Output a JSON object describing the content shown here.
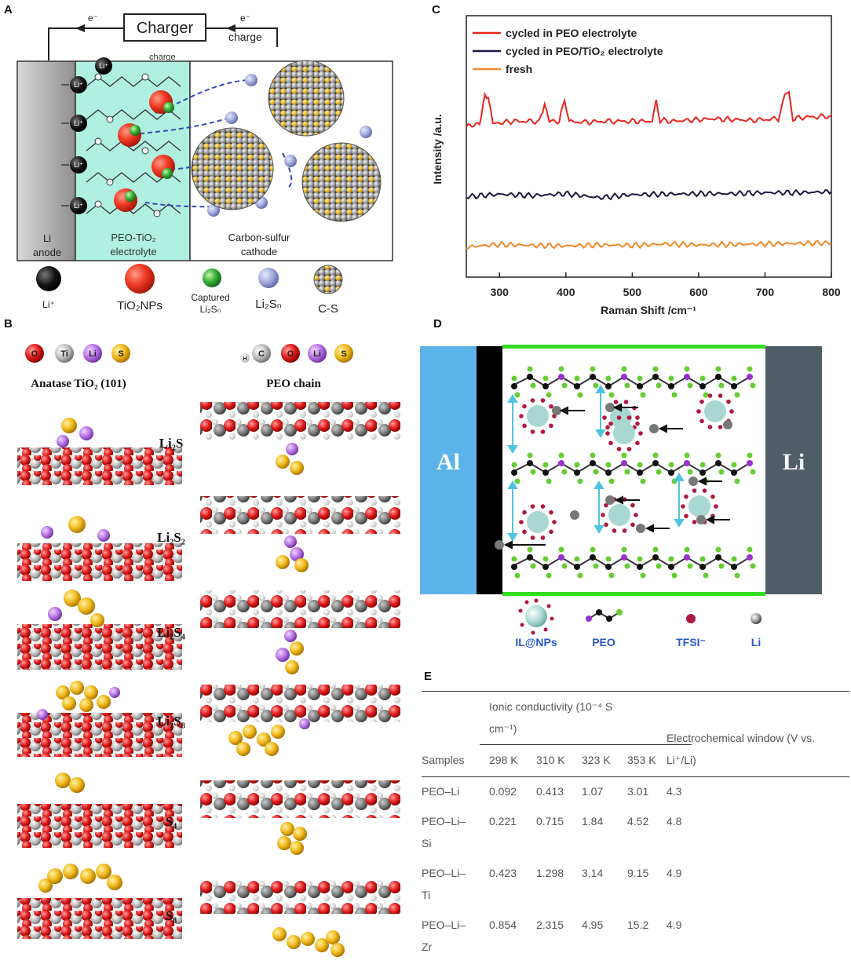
{
  "panels": {
    "a": "A",
    "b": "B",
    "c": "C",
    "d": "D",
    "e": "E"
  },
  "panel_a": {
    "charger": "Charger",
    "e_left": "e⁻",
    "e_right": "e⁻",
    "charge_top": "charge",
    "charge_small": "charge",
    "li_ion": "Li⁺",
    "anode": "Li anode",
    "anode_line1": "Li",
    "anode_line2": "anode",
    "electrolyte_line1": "PEO-TiO₂",
    "electrolyte_line2": "electrolyte",
    "cathode_line1": "Carbon-sulfur",
    "cathode_line2": "cathode",
    "legend": {
      "li": "Li⁺",
      "tio2": "TiO₂NPs",
      "captured_line1": "Captured",
      "captured_line2": "Li₂Sₙ",
      "li2sn": "Li₂Sₙ",
      "cs": "C-S"
    }
  },
  "panel_b": {
    "left_legend": [
      "O",
      "Ti",
      "Li",
      "S"
    ],
    "right_legend": [
      "H",
      "C",
      "O",
      "Li",
      "S"
    ],
    "left_title": "Anatase TiO₂ (101)",
    "right_title": "PEO chain",
    "species": [
      "Li₂S",
      "Li₂S₂",
      "Li₂S₄",
      "Li₂S₈",
      "S₄",
      "S₈"
    ]
  },
  "chart_data": {
    "type": "line",
    "xlabel": "Raman Shift /cm⁻¹",
    "ylabel": "Intensity /a.u.",
    "xlim": [
      250,
      800
    ],
    "xticks": [
      300,
      400,
      500,
      600,
      700,
      800
    ],
    "xtick_labels": [
      "300",
      "400",
      "500",
      "600",
      "700",
      "800"
    ],
    "legend_position": "top-left",
    "series": [
      {
        "name": "cycled in PEO electrolyte",
        "color": "#e8251f",
        "x": [
          250,
          270,
          278,
          283,
          290,
          320,
          360,
          368,
          375,
          390,
          398,
          405,
          420,
          460,
          500,
          530,
          536,
          542,
          560,
          620,
          680,
          720,
          730,
          736,
          742,
          760,
          800
        ],
        "y": [
          3.0,
          3.05,
          3.6,
          3.6,
          3.05,
          3.1,
          3.1,
          3.45,
          3.1,
          3.1,
          3.55,
          3.1,
          3.08,
          3.1,
          3.1,
          3.1,
          3.5,
          3.12,
          3.1,
          3.15,
          3.12,
          3.15,
          3.65,
          3.65,
          3.15,
          3.18,
          3.2
        ]
      },
      {
        "name": "cycled in PEO/TiO₂ electrolyte",
        "color": "#20163f",
        "x": [
          250,
          300,
          350,
          400,
          450,
          500,
          550,
          600,
          650,
          700,
          750,
          800
        ],
        "y": [
          1.6,
          1.65,
          1.62,
          1.66,
          1.58,
          1.64,
          1.65,
          1.66,
          1.66,
          1.68,
          1.68,
          1.7
        ]
      },
      {
        "name": "fresh",
        "color": "#f0892a",
        "x": [
          250,
          300,
          350,
          400,
          450,
          500,
          550,
          600,
          650,
          700,
          750,
          800
        ],
        "y": [
          0.6,
          0.65,
          0.63,
          0.62,
          0.64,
          0.63,
          0.66,
          0.64,
          0.65,
          0.66,
          0.67,
          0.68
        ]
      }
    ]
  },
  "panel_d": {
    "al": "Al",
    "li": "Li",
    "legend": [
      "IL@NPs",
      "PEO",
      "TFSI⁻",
      "Li"
    ]
  },
  "table_e": {
    "header_group": "Ionic conductivity (10⁻⁴ S cm⁻¹)",
    "header_group_line1": "Ionic conductivity (10⁻⁴ S",
    "header_group_line2": "cm⁻¹)",
    "samples_header": "Samples",
    "temps": [
      "298 K",
      "310 K",
      "323 K",
      "353 K"
    ],
    "window_line1": "Electrochemical window (V vs.",
    "window_line2": "Li⁺/Li)",
    "rows": [
      {
        "sample1": "PEO–Li",
        "sample2": "",
        "values": [
          "0.092",
          "0.413",
          "1.07",
          "3.01"
        ],
        "window": "4.3"
      },
      {
        "sample1": "PEO–Li–",
        "sample2": "Si",
        "values": [
          "0.221",
          "0.715",
          "1.84",
          "4.52"
        ],
        "window": "4.8"
      },
      {
        "sample1": "PEO–Li–",
        "sample2": "Ti",
        "values": [
          "0.423",
          "1.298",
          "3.14",
          "9.15"
        ],
        "window": "4.9"
      },
      {
        "sample1": "PEO–Li–",
        "sample2": "Zr",
        "values": [
          "0.854",
          "2.315",
          "4.95",
          "15.2"
        ],
        "window": "4.9"
      }
    ]
  }
}
